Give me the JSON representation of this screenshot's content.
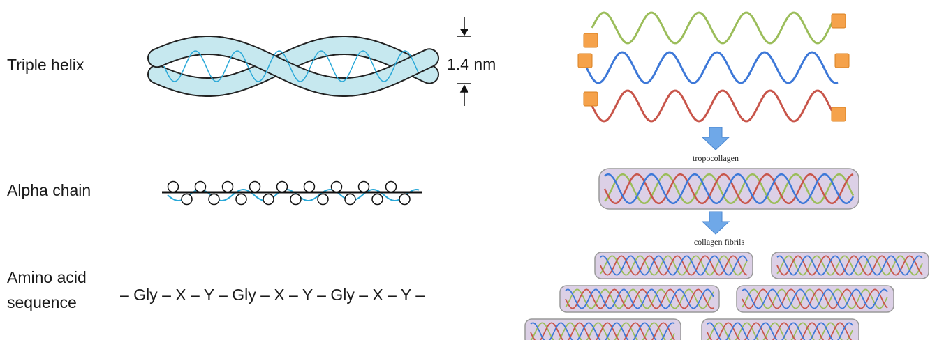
{
  "left_panel": {
    "triple_helix": {
      "label": "Triple helix",
      "dimension": "1.4 nm"
    },
    "alpha_chain": {
      "label": "Alpha chain"
    },
    "amino_acid": {
      "label_lines": [
        "Amino acid",
        "sequence"
      ],
      "sequence": "– Gly – X – Y – Gly – X – Y – Gly – X – Y –"
    }
  },
  "right_panel": {
    "steps": [
      "tropocollagen",
      "collagen fibrils"
    ]
  }
}
